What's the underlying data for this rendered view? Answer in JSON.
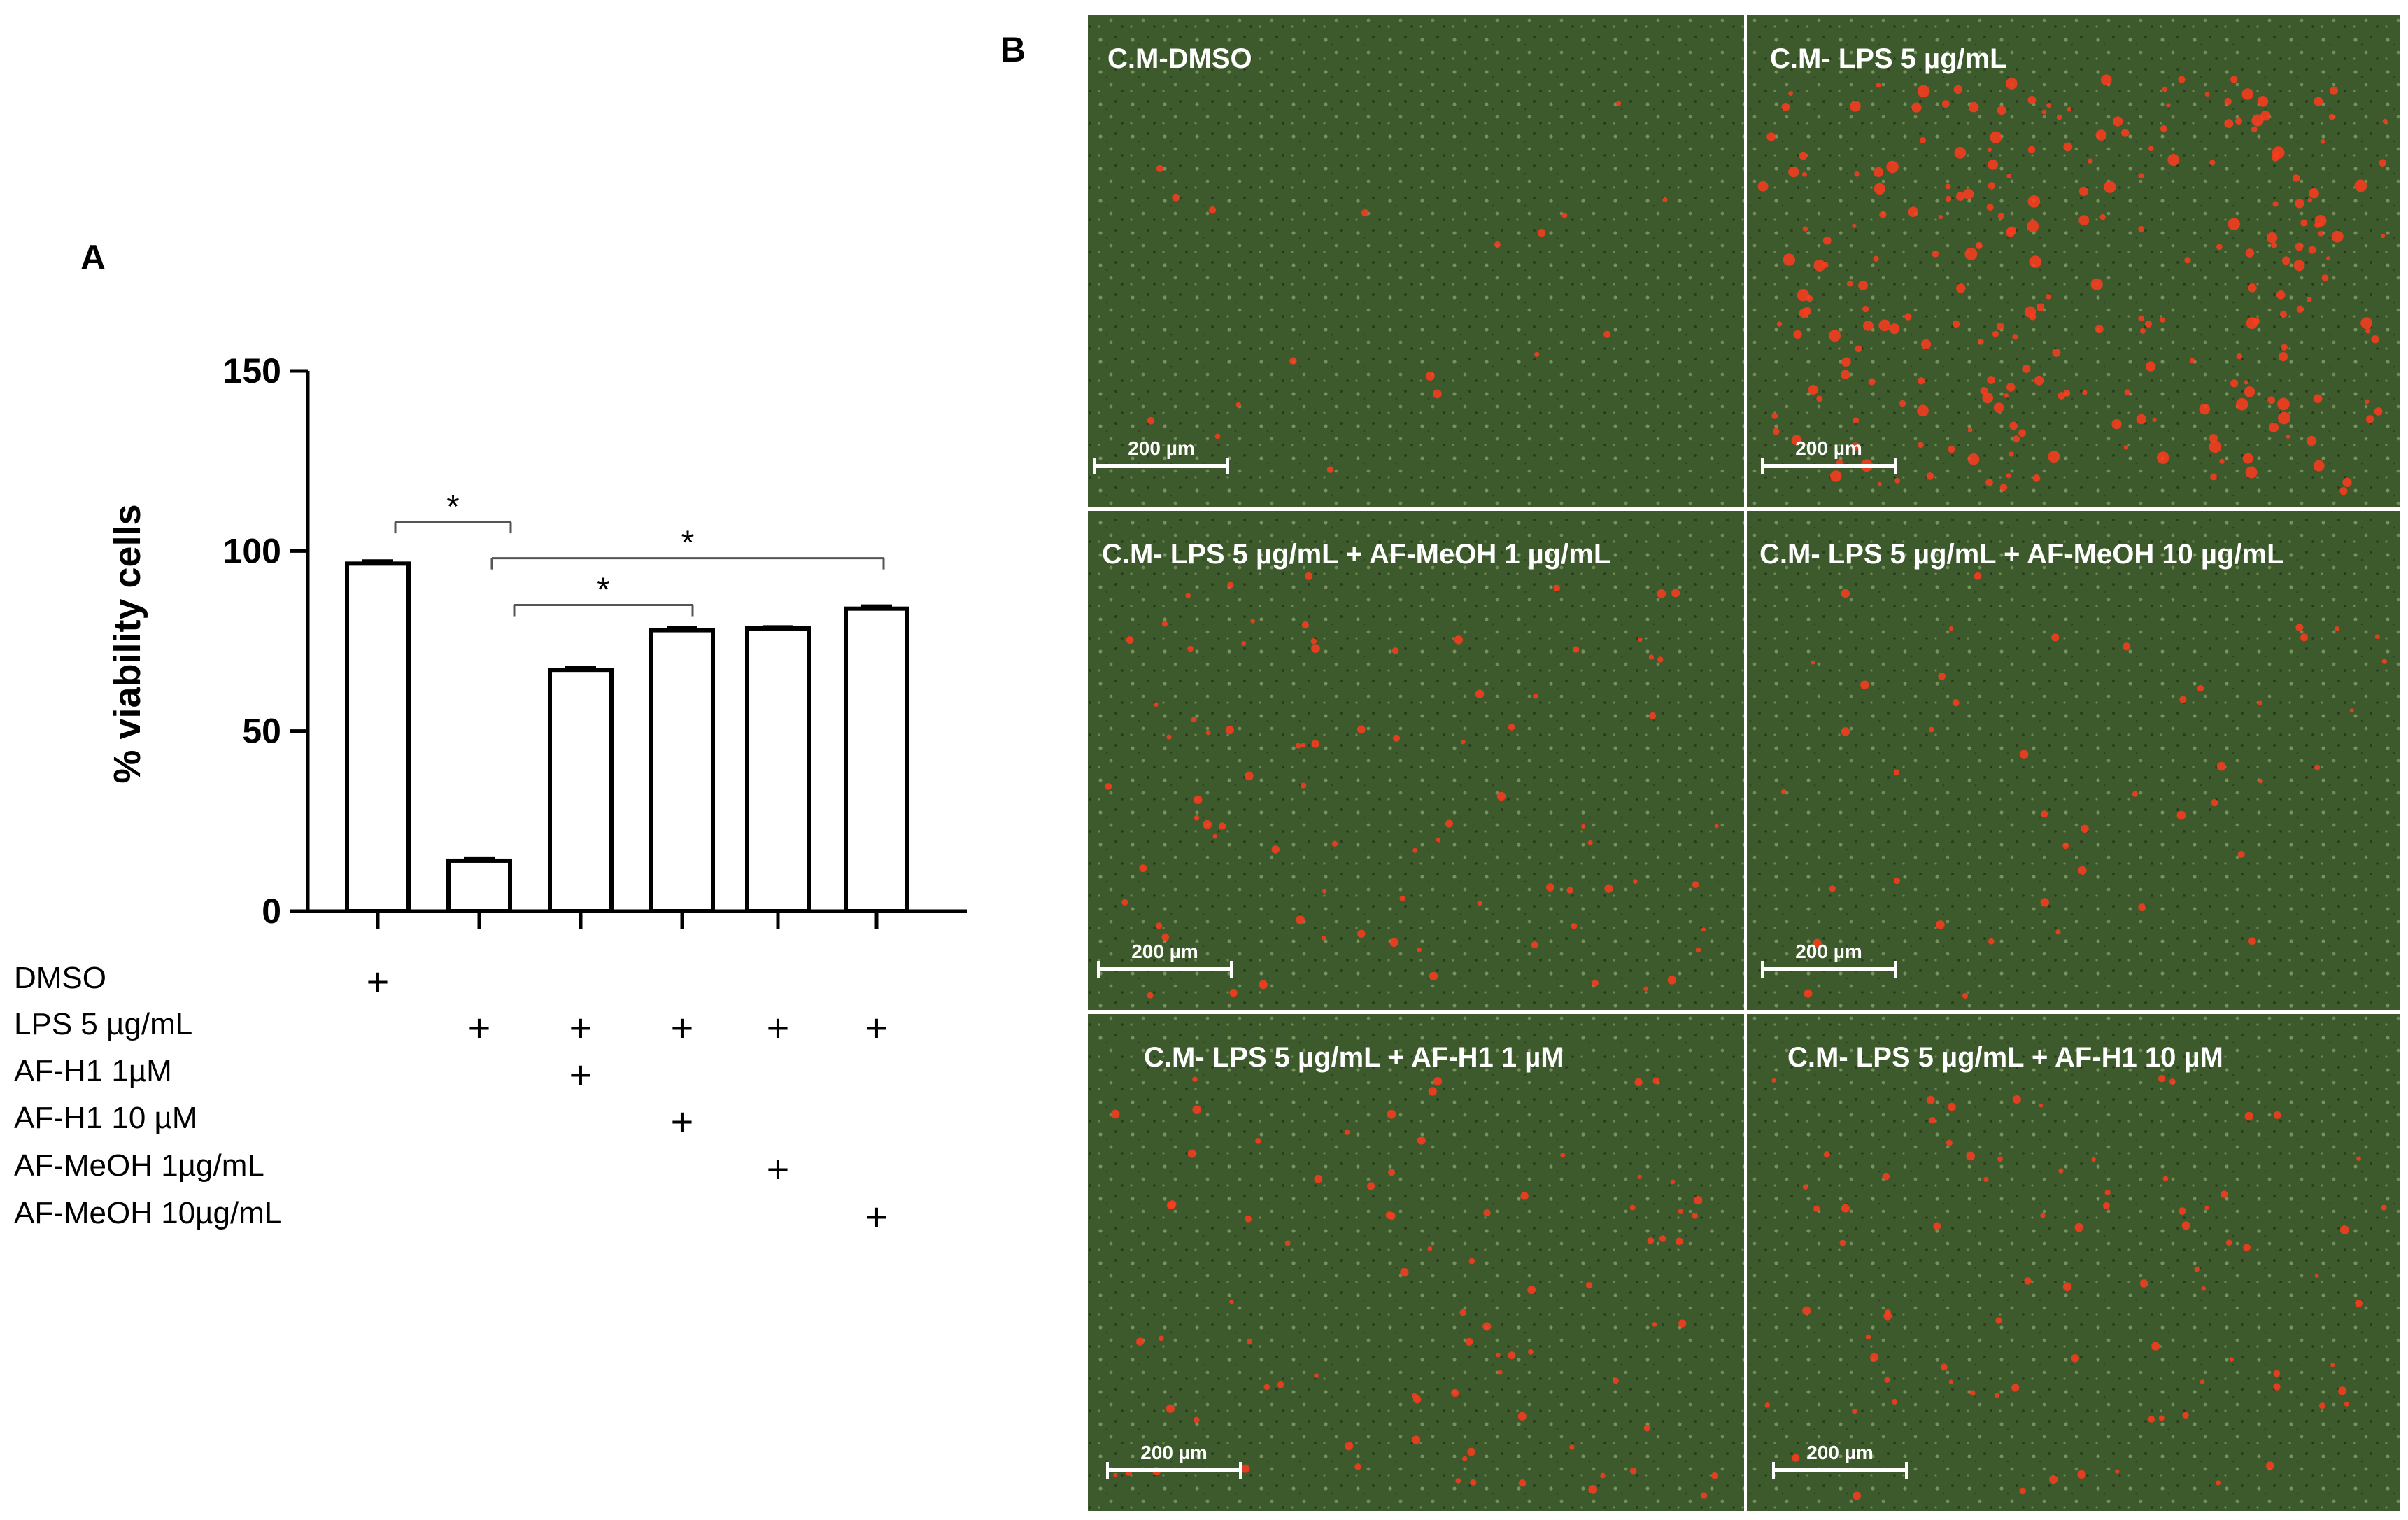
{
  "panel_a": {
    "label": "A"
  },
  "panel_b": {
    "label": "B",
    "scale_bar": "200 µm",
    "panels": [
      {
        "title": "C.M-DMSO",
        "red_level": "low"
      },
      {
        "title": "C.M- LPS 5 µg/mL",
        "red_level": "high"
      },
      {
        "title": "C.M- LPS 5 µg/mL + AF-MeOH 1 µg/mL",
        "red_level": "medium"
      },
      {
        "title": "C.M- LPS 5 µg/mL + AF-MeOH 10 µg/mL",
        "red_level": "low-medium"
      },
      {
        "title": "C.M- LPS 5 µg/mL + AF-H1 1 µM",
        "red_level": "medium"
      },
      {
        "title": "C.M- LPS 5 µg/mL + AF-H1 10 µM",
        "red_level": "medium"
      }
    ]
  },
  "chart_data": {
    "type": "bar",
    "ylabel": "% viability cells",
    "ylim": [
      0,
      150
    ],
    "yticks": [
      0,
      50,
      100,
      150
    ],
    "values": [
      96.5,
      14,
      67,
      78,
      78.5,
      84
    ],
    "errors": [
      0.8,
      0.8,
      0.8,
      0.8,
      0.5,
      0.8
    ],
    "treatment_rows": [
      {
        "label": "DMSO",
        "marks": [
          1,
          0,
          0,
          0,
          0,
          0
        ]
      },
      {
        "label": "LPS 5 µg/mL",
        "marks": [
          0,
          1,
          1,
          1,
          1,
          1
        ]
      },
      {
        "label": "AF-H1 1µM",
        "marks": [
          0,
          0,
          1,
          0,
          0,
          0
        ]
      },
      {
        "label": "AF-H1 10 µM",
        "marks": [
          0,
          0,
          0,
          1,
          0,
          0
        ]
      },
      {
        "label": "AF-MeOH 1µg/mL",
        "marks": [
          0,
          0,
          0,
          0,
          1,
          0
        ]
      },
      {
        "label": "AF-MeOH 10µg/mL",
        "marks": [
          0,
          0,
          0,
          0,
          0,
          1
        ]
      }
    ],
    "mark_symbol": "+",
    "significance": [
      {
        "from": 0,
        "to": 1,
        "label": "*",
        "y": 108
      },
      {
        "from": 1,
        "to": 5,
        "label": "*",
        "y": 98
      },
      {
        "from": 1,
        "to": 3,
        "label": "*",
        "y": 85
      }
    ],
    "colors": {
      "bar_fill": "#ffffff",
      "bar_stroke": "#000000",
      "bracket": "#555555"
    }
  }
}
